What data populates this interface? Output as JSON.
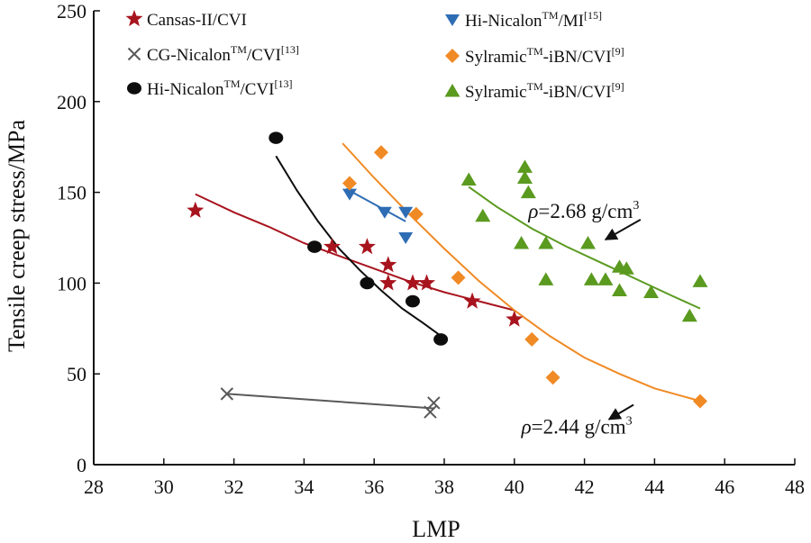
{
  "chart_data": {
    "type": "scatter",
    "xlabel": "LMP",
    "ylabel": "Tensile creep stress/MPa",
    "xlim": [
      28,
      48
    ],
    "ylim": [
      0,
      250
    ],
    "xticks": [
      28,
      30,
      32,
      34,
      36,
      38,
      40,
      42,
      44,
      46,
      48
    ],
    "yticks": [
      0,
      50,
      100,
      150,
      200,
      250
    ],
    "grid": false,
    "legend_position": "top-left",
    "series": [
      {
        "id": "cansas",
        "name_main": "Cansas-II/CVI",
        "name_sup": "",
        "name_tail": "",
        "name_ref": "",
        "marker": "star",
        "color": "#A8141E",
        "points": [
          [
            30.9,
            140
          ],
          [
            34.8,
            120
          ],
          [
            35.8,
            120
          ],
          [
            36.4,
            110
          ],
          [
            36.4,
            100
          ],
          [
            37.1,
            100
          ],
          [
            37.5,
            100
          ],
          [
            38.8,
            90
          ],
          [
            40.0,
            80
          ]
        ],
        "fit": [
          [
            30.9,
            149
          ],
          [
            32,
            139
          ],
          [
            33,
            131
          ],
          [
            34,
            122
          ],
          [
            35,
            115
          ],
          [
            36,
            108
          ],
          [
            37,
            101
          ],
          [
            38,
            95
          ],
          [
            39,
            90
          ],
          [
            40,
            85
          ]
        ]
      },
      {
        "id": "cg-nicalon",
        "name_main": "CG-Nicalon",
        "name_sup": "TM",
        "name_tail": "/CVI",
        "name_ref": "[13]",
        "marker": "x",
        "color": "#595959",
        "points": [
          [
            31.8,
            39
          ],
          [
            37.6,
            29
          ],
          [
            37.7,
            34
          ]
        ],
        "fit": [
          [
            31.8,
            39
          ],
          [
            37.7,
            31
          ]
        ]
      },
      {
        "id": "hi-nicalon-cvi",
        "name_main": "Hi-Nicalon",
        "name_sup": "TM",
        "name_tail": "/CVI",
        "name_ref": "[13]",
        "marker": "circle",
        "color": "#0d0d0d",
        "points": [
          [
            33.2,
            180
          ],
          [
            34.3,
            120
          ],
          [
            35.8,
            100
          ],
          [
            37.1,
            90
          ],
          [
            37.9,
            69
          ]
        ],
        "fit": [
          [
            33.2,
            170
          ],
          [
            33.8,
            151
          ],
          [
            34.4,
            134
          ],
          [
            35.0,
            119
          ],
          [
            35.6,
            107
          ],
          [
            36.2,
            96
          ],
          [
            36.8,
            86
          ],
          [
            37.4,
            78
          ],
          [
            37.9,
            71
          ]
        ]
      },
      {
        "id": "hi-nicalon-mi",
        "name_main": "Hi-Nicalon",
        "name_sup": "TM",
        "name_tail": "/MI",
        "name_ref": "[15]",
        "marker": "triangle-down",
        "color": "#2E6DB4",
        "points": [
          [
            35.3,
            149
          ],
          [
            36.3,
            139
          ],
          [
            36.9,
            139
          ],
          [
            36.9,
            125
          ]
        ],
        "fit": [
          [
            35.2,
            152
          ],
          [
            36.9,
            134
          ]
        ]
      },
      {
        "id": "sylramic-orange",
        "name_main": "Sylramic",
        "name_sup": "TM",
        "name_tail": "-iBN/CVI",
        "name_ref": "[9]",
        "marker": "diamond",
        "color": "#F08A24",
        "points": [
          [
            35.3,
            155
          ],
          [
            36.2,
            172
          ],
          [
            37.2,
            138
          ],
          [
            38.4,
            103
          ],
          [
            40.5,
            69
          ],
          [
            41.1,
            48
          ],
          [
            45.3,
            35
          ]
        ],
        "fit": [
          [
            35.1,
            177
          ],
          [
            36,
            158
          ],
          [
            37,
            138
          ],
          [
            38,
            119
          ],
          [
            39,
            101
          ],
          [
            40,
            85
          ],
          [
            41,
            71
          ],
          [
            42,
            59
          ],
          [
            43,
            50
          ],
          [
            44,
            42
          ],
          [
            45.3,
            35
          ]
        ]
      },
      {
        "id": "sylramic-green",
        "name_main": "Sylramic",
        "name_sup": "TM",
        "name_tail": "-iBN/CVI",
        "name_ref": "[9]",
        "marker": "triangle-up",
        "color": "#5A9A1F",
        "points": [
          [
            38.7,
            157
          ],
          [
            39.1,
            137
          ],
          [
            40.2,
            122
          ],
          [
            40.3,
            164
          ],
          [
            40.3,
            158
          ],
          [
            40.4,
            150
          ],
          [
            40.9,
            122
          ],
          [
            40.9,
            102
          ],
          [
            42.1,
            122
          ],
          [
            42.2,
            102
          ],
          [
            42.6,
            102
          ],
          [
            43.0,
            109
          ],
          [
            43.0,
            96
          ],
          [
            43.2,
            108
          ],
          [
            43.9,
            95
          ],
          [
            45.0,
            82
          ],
          [
            45.3,
            101
          ]
        ],
        "fit": [
          [
            38.7,
            153
          ],
          [
            39.5,
            142
          ],
          [
            40.5,
            130
          ],
          [
            41.5,
            120
          ],
          [
            42.5,
            111
          ],
          [
            43.5,
            102
          ],
          [
            44.5,
            93
          ],
          [
            45.3,
            86
          ]
        ]
      }
    ],
    "annotations": [
      {
        "name": "density-annotation-high",
        "rho": "ρ",
        "text": "=2.68 g/cm",
        "sup": "3",
        "x": 40.4,
        "y": 136,
        "arrow_from": [
          43.6,
          135
        ],
        "arrow_to": [
          42.6,
          124
        ]
      },
      {
        "name": "density-annotation-low",
        "rho": "ρ",
        "text": "=2.44 g/cm",
        "sup": "3",
        "x": 40.2,
        "y": 17,
        "arrow_from": [
          43.4,
          33
        ],
        "arrow_to": [
          42.7,
          25
        ]
      }
    ]
  }
}
